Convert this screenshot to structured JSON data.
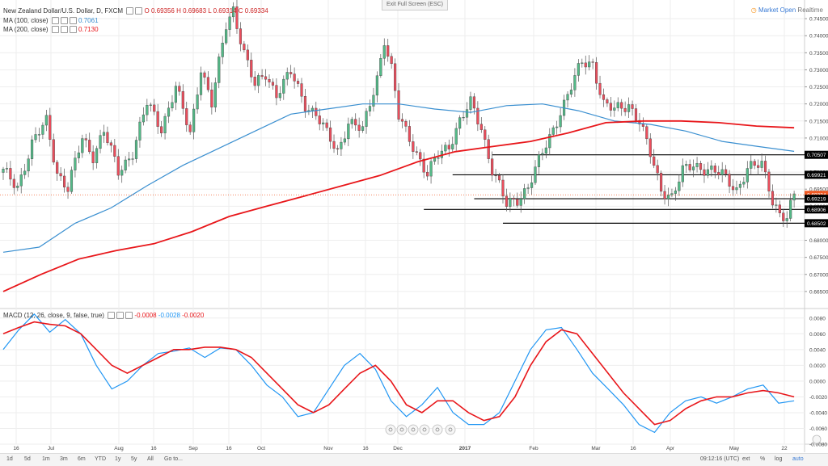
{
  "header": {
    "title": "New Zealand Dollar/U.S. Dollar, D, FXCM",
    "ohlc": "O 0.69356 H 0.69683 L 0.69314 C 0.69334",
    "ma100_label": "MA (100, close)",
    "ma100_value": "0.7061",
    "ma200_label": "MA (200, close)",
    "ma200_value": "0.7130",
    "macd_label": "MACD (12, 26, close, 9, false, true)",
    "macd_values": [
      "-0.0008",
      "-0.0028",
      "-0.0020"
    ]
  },
  "exit_fullscreen": "Exit Full Screen (ESC)",
  "market_status": "Market Open",
  "market_time": "Realtime",
  "colors": {
    "up": "#53b987",
    "down": "#eb4d5c",
    "ma100": "#3a8fd0",
    "ma200": "#e8161a",
    "macd": "#2196f3",
    "signal": "#e8161a",
    "grid": "#eeeeee",
    "current": "#f15a24"
  },
  "chart_data": [
    {
      "type": "candlestick",
      "title": "New Zealand Dollar/U.S. Dollar, D, FXCM",
      "x_ticks": [
        "16",
        "Jul",
        "Aug",
        "16",
        "Sep",
        "16",
        "Oct",
        "Nov",
        "16",
        "Dec",
        "2017",
        "Feb",
        "Mar",
        "16",
        "Apr",
        "May",
        "22"
      ],
      "ylim": [
        0.66,
        0.75
      ],
      "y_ticks": [
        "0.74500",
        "0.74000",
        "0.73500",
        "0.73000",
        "0.72500",
        "0.72000",
        "0.71500",
        "0.71000",
        "0.70500",
        "0.70000",
        "0.69500",
        "0.69000",
        "0.68500",
        "0.68000",
        "0.67500",
        "0.67000",
        "0.66500"
      ],
      "price_labels": [
        {
          "value": 0.70507,
          "text": "0.70507"
        },
        {
          "value": 0.69921,
          "text": "0.69921"
        },
        {
          "value": 0.69334,
          "text": "0.69334"
        },
        {
          "value": 0.69219,
          "text": "0.69219"
        },
        {
          "value": 0.68906,
          "text": "0.68906"
        },
        {
          "value": 0.68502,
          "text": "0.68502"
        }
      ],
      "horizontal_levels": [
        {
          "value": 0.70507,
          "from_index": 136
        },
        {
          "value": 0.69921,
          "from_index": 125
        },
        {
          "value": 0.69219,
          "from_index": 131
        },
        {
          "value": 0.68906,
          "from_index": 117
        },
        {
          "value": 0.68502,
          "from_index": 139
        }
      ],
      "current_price": 0.69334,
      "candle_path": [
        [
          0,
          0.7
        ],
        [
          4,
          0.696
        ],
        [
          8,
          0.708
        ],
        [
          12,
          0.715
        ],
        [
          15,
          0.7
        ],
        [
          18,
          0.695
        ],
        [
          22,
          0.71
        ],
        [
          25,
          0.705
        ],
        [
          28,
          0.712
        ],
        [
          32,
          0.7
        ],
        [
          36,
          0.706
        ],
        [
          40,
          0.72
        ],
        [
          44,
          0.713
        ],
        [
          48,
          0.725
        ],
        [
          52,
          0.711
        ],
        [
          55,
          0.731
        ],
        [
          58,
          0.72
        ],
        [
          62,
          0.743
        ],
        [
          64,
          0.748
        ],
        [
          67,
          0.735
        ],
        [
          70,
          0.725
        ],
        [
          73,
          0.729
        ],
        [
          76,
          0.723
        ],
        [
          80,
          0.729
        ],
        [
          84,
          0.72
        ],
        [
          87,
          0.717
        ],
        [
          90,
          0.711
        ],
        [
          93,
          0.706
        ],
        [
          96,
          0.715
        ],
        [
          100,
          0.712
        ],
        [
          104,
          0.728
        ],
        [
          106,
          0.739
        ],
        [
          108,
          0.73
        ],
        [
          110,
          0.716
        ],
        [
          114,
          0.708
        ],
        [
          118,
          0.699
        ],
        [
          121,
          0.705
        ],
        [
          124,
          0.708
        ],
        [
          127,
          0.715
        ],
        [
          130,
          0.72
        ],
        [
          133,
          0.713
        ],
        [
          136,
          0.701
        ],
        [
          138,
          0.696
        ],
        [
          140,
          0.69
        ],
        [
          143,
          0.692
        ],
        [
          146,
          0.696
        ],
        [
          149,
          0.703
        ],
        [
          152,
          0.71
        ],
        [
          155,
          0.718
        ],
        [
          158,
          0.725
        ],
        [
          161,
          0.732
        ],
        [
          164,
          0.732
        ],
        [
          167,
          0.72
        ],
        [
          170,
          0.718
        ],
        [
          174,
          0.72
        ],
        [
          177,
          0.715
        ],
        [
          180,
          0.705
        ],
        [
          183,
          0.695
        ],
        [
          186,
          0.693
        ],
        [
          189,
          0.7
        ],
        [
          192,
          0.702
        ],
        [
          196,
          0.701
        ],
        [
          200,
          0.699
        ],
        [
          204,
          0.695
        ],
        [
          207,
          0.701
        ],
        [
          211,
          0.702
        ],
        [
          213,
          0.696
        ],
        [
          214,
          0.692
        ],
        [
          216,
          0.688
        ],
        [
          218,
          0.686
        ],
        [
          220,
          0.693
        ]
      ],
      "ma100": [
        0.6765,
        0.678,
        0.685,
        0.6895,
        0.696,
        0.702,
        0.707,
        0.712,
        0.717,
        0.7185,
        0.72,
        0.72,
        0.7185,
        0.7175,
        0.7195,
        0.72,
        0.718,
        0.715,
        0.714,
        0.712,
        0.709,
        0.7075,
        0.7061
      ],
      "ma200": [
        0.665,
        0.67,
        0.6745,
        0.677,
        0.679,
        0.6825,
        0.687,
        0.69,
        0.693,
        0.696,
        0.699,
        0.703,
        0.706,
        0.7075,
        0.709,
        0.7115,
        0.7145,
        0.715,
        0.715,
        0.7145,
        0.7135,
        0.713
      ]
    },
    {
      "type": "line",
      "title": "MACD (12, 26, close, 9, false, true)",
      "ylim": [
        -0.008,
        0.009
      ],
      "y_ticks": [
        "0.0080",
        "0.0060",
        "0.0040",
        "0.0020",
        "0.0000",
        "-0.0020",
        "-0.0040",
        "-0.0060",
        "-0.0080"
      ],
      "series": [
        {
          "name": "MACD",
          "values": [
            0.004,
            0.0065,
            0.0085,
            0.0062,
            0.0078,
            0.006,
            0.002,
            -0.001,
            0.0,
            0.002,
            0.0035,
            0.0038,
            0.0042,
            0.003,
            0.0042,
            0.004,
            0.002,
            -0.0005,
            -0.002,
            -0.0045,
            -0.004,
            -0.001,
            0.002,
            0.0035,
            0.0015,
            -0.0025,
            -0.0045,
            -0.003,
            -0.0008,
            -0.004,
            -0.0055,
            -0.0055,
            -0.004,
            0.0,
            0.004,
            0.0065,
            0.0068,
            0.004,
            0.001,
            -0.001,
            -0.003,
            -0.0055,
            -0.0065,
            -0.004,
            -0.0025,
            -0.002,
            -0.0028,
            -0.002,
            -0.001,
            -0.0005,
            -0.0028,
            -0.0025
          ]
        },
        {
          "name": "Signal",
          "values": [
            0.006,
            0.0068,
            0.0075,
            0.0072,
            0.007,
            0.006,
            0.004,
            0.002,
            0.001,
            0.002,
            0.003,
            0.004,
            0.004,
            0.0043,
            0.0043,
            0.004,
            0.003,
            0.001,
            -0.001,
            -0.003,
            -0.004,
            -0.003,
            -0.001,
            0.001,
            0.002,
            0.0,
            -0.003,
            -0.004,
            -0.0025,
            -0.0025,
            -0.004,
            -0.005,
            -0.0045,
            -0.002,
            0.002,
            0.005,
            0.0065,
            0.006,
            0.0035,
            0.001,
            -0.0015,
            -0.0035,
            -0.0055,
            -0.005,
            -0.0035,
            -0.0025,
            -0.002,
            -0.002,
            -0.0015,
            -0.0012,
            -0.0015,
            -0.002
          ]
        }
      ]
    }
  ],
  "toolbar": {
    "ranges": [
      "1d",
      "5d",
      "1m",
      "3m",
      "6m",
      "YTD",
      "1y",
      "5y",
      "All",
      "Go to..."
    ],
    "time": "09:12:16 (UTC)",
    "ext": "ext",
    "percent": "%",
    "log": "log",
    "auto": "auto"
  }
}
